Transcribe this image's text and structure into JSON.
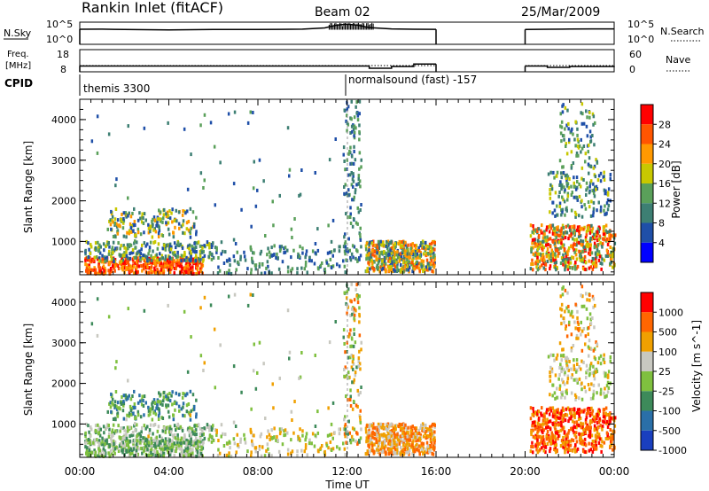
{
  "header": {
    "station": "Rankin Inlet (fitACF)",
    "beam": "Beam 02",
    "date": "25/Mar/2009"
  },
  "noise_panel": {
    "left_label": "N.Sky",
    "left_ticks": [
      "10^5",
      "10^0"
    ],
    "right_ticks": [
      "10^5",
      "10^0"
    ],
    "right_label": "N.Search"
  },
  "freq_panel": {
    "left_label_1": "Freq.",
    "left_label_2": "[MHz]",
    "left_ticks": [
      "18",
      "8"
    ],
    "right_ticks": [
      "60",
      "0"
    ],
    "right_label": "Nave"
  },
  "cpid_panel": {
    "label": "CPID",
    "modes": [
      "themis 3300",
      "normalsound (fast) -157"
    ]
  },
  "colors": {
    "power_scale": [
      "#0000ff",
      "#1f4fa8",
      "#3d7f73",
      "#5aa05a",
      "#c8c800",
      "#ff9900",
      "#ff5500",
      "#ff0000"
    ],
    "velocity_scale": [
      "#1a3fbf",
      "#2a6fa8",
      "#3d8a5a",
      "#7fc03f",
      "#c8c8c0",
      "#f0a000",
      "#ff6600",
      "#ff0000"
    ]
  },
  "chart_data": [
    {
      "type": "line",
      "title": "Rankin Inlet (fitACF)",
      "ylabel": "N.Sky",
      "x": [
        "00:00",
        "04:00",
        "08:00",
        "12:00",
        "16:00",
        "20:00",
        "00:00"
      ],
      "series": [
        {
          "name": "N.Sky",
          "points": [
            [
              0.0,
              2500
            ],
            [
              1.0,
              2600
            ],
            [
              2.0,
              2200
            ],
            [
              3.0,
              2000
            ],
            [
              4.0,
              1800
            ],
            [
              5.0,
              2000
            ],
            [
              6.0,
              2200
            ],
            [
              7.0,
              2300
            ],
            [
              8.0,
              2200
            ],
            [
              9.0,
              2400
            ],
            [
              10.0,
              2600
            ],
            [
              11.0,
              5000
            ],
            [
              11.5,
              20000
            ],
            [
              12.0,
              35000
            ],
            [
              12.5,
              20000
            ],
            [
              13.0,
              6000
            ],
            [
              14.0,
              3000
            ],
            [
              15.0,
              2500
            ],
            [
              16.0,
              2400
            ],
            [
              20.0,
              2200
            ],
            [
              21.0,
              2500
            ],
            [
              22.0,
              2800
            ],
            [
              23.0,
              3000
            ],
            [
              24.0,
              3000
            ]
          ]
        }
      ]
    },
    {
      "type": "line",
      "ylabel": "Freq. [MHz]",
      "x": [
        "00:00",
        "04:00",
        "08:00",
        "12:00",
        "16:00",
        "20:00",
        "00:00"
      ],
      "ylim": [
        8,
        18
      ],
      "series": [
        {
          "name": "Freq.",
          "points": [
            [
              0.0,
              10.6
            ],
            [
              6.0,
              10.6
            ],
            [
              12.0,
              10.6
            ],
            [
              13.0,
              9.6
            ],
            [
              14.0,
              10.4
            ],
            [
              15.0,
              11.5
            ],
            [
              16.0,
              11.5
            ],
            [
              20.0,
              10.6
            ],
            [
              21.0,
              10.0
            ],
            [
              22.0,
              10.4
            ],
            [
              24.0,
              10.6
            ]
          ]
        },
        {
          "name": "Nave",
          "points": [
            [
              0.0,
              10.8
            ],
            [
              12.0,
              10.8
            ],
            [
              16.0,
              10.8
            ],
            [
              20.0,
              10.8
            ],
            [
              24.0,
              10.8
            ]
          ]
        }
      ]
    },
    {
      "type": "heatmap",
      "xlabel": "Time UT",
      "ylabel": "Slant Range [km]",
      "colorbar_label": "Power [dB]",
      "colorbar_ticks": [
        "28",
        "24",
        "20",
        "16",
        "12",
        "8",
        "4"
      ],
      "x": [
        "00:00",
        "04:00",
        "08:00",
        "12:00",
        "16:00",
        "20:00",
        "00:00"
      ],
      "yticks": [
        "1000",
        "2000",
        "3000",
        "4000"
      ],
      "ylim": [
        180,
        4500
      ]
    },
    {
      "type": "heatmap",
      "xlabel": "Time UT",
      "ylabel": "Slant Range [km]",
      "colorbar_label": "Velocity [m s^-1]",
      "colorbar_ticks": [
        "1000",
        "500",
        "100",
        "25",
        "-25",
        "-100",
        "-500",
        "-1000"
      ],
      "x": [
        "00:00",
        "04:00",
        "08:00",
        "12:00",
        "16:00",
        "20:00",
        "00:00"
      ],
      "yticks": [
        "1000",
        "2000",
        "3000",
        "4000"
      ],
      "ylim": [
        180,
        4500
      ]
    }
  ],
  "axis": {
    "xlabel": "Time UT",
    "xticks": [
      "00:00",
      "04:00",
      "08:00",
      "12:00",
      "16:00",
      "20:00",
      "00:00"
    ],
    "ylabel": "Slant Range [km]",
    "yticks": [
      "1000",
      "2000",
      "3000",
      "4000"
    ],
    "power_label": "Power [dB]",
    "velocity_label": "Velocity [m s^-1]"
  }
}
